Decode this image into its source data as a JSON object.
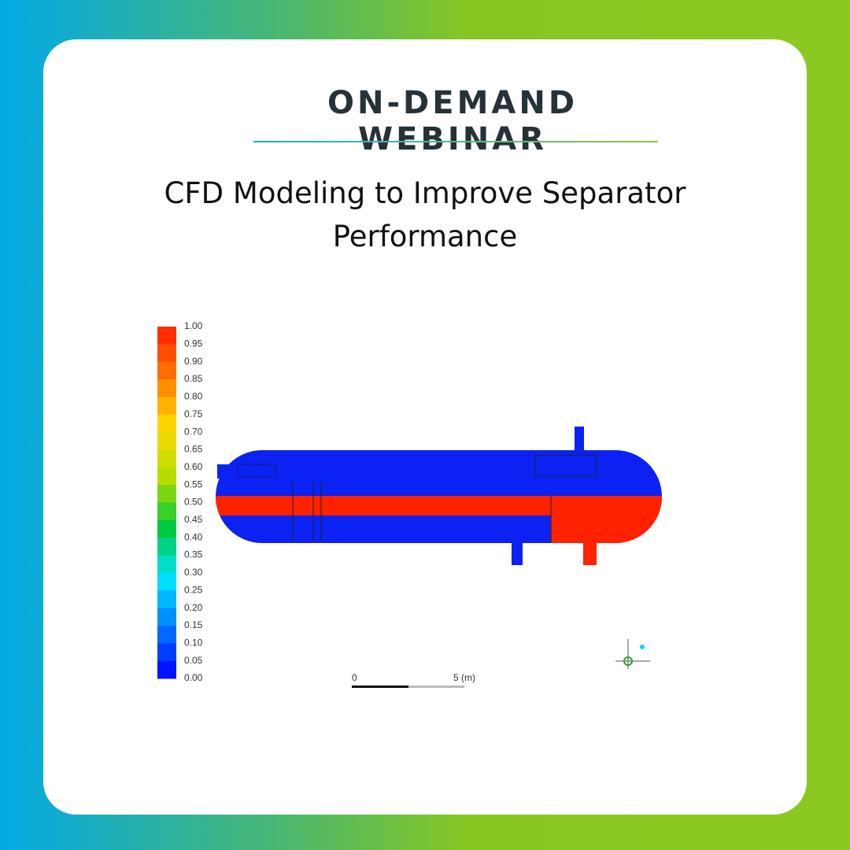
{
  "header": {
    "kicker": "ON-DEMAND WEBINAR",
    "title": "CFD Modeling to Improve Separator Performance"
  },
  "legend": {
    "labels": [
      "1.00",
      "0.95",
      "0.90",
      "0.85",
      "0.80",
      "0.75",
      "0.70",
      "0.65",
      "0.60",
      "0.55",
      "0.50",
      "0.45",
      "0.40",
      "0.35",
      "0.30",
      "0.25",
      "0.20",
      "0.15",
      "0.10",
      "0.05",
      "0.00"
    ]
  },
  "scale_bar": {
    "labels": [
      "0",
      "5 (m)"
    ]
  }
}
